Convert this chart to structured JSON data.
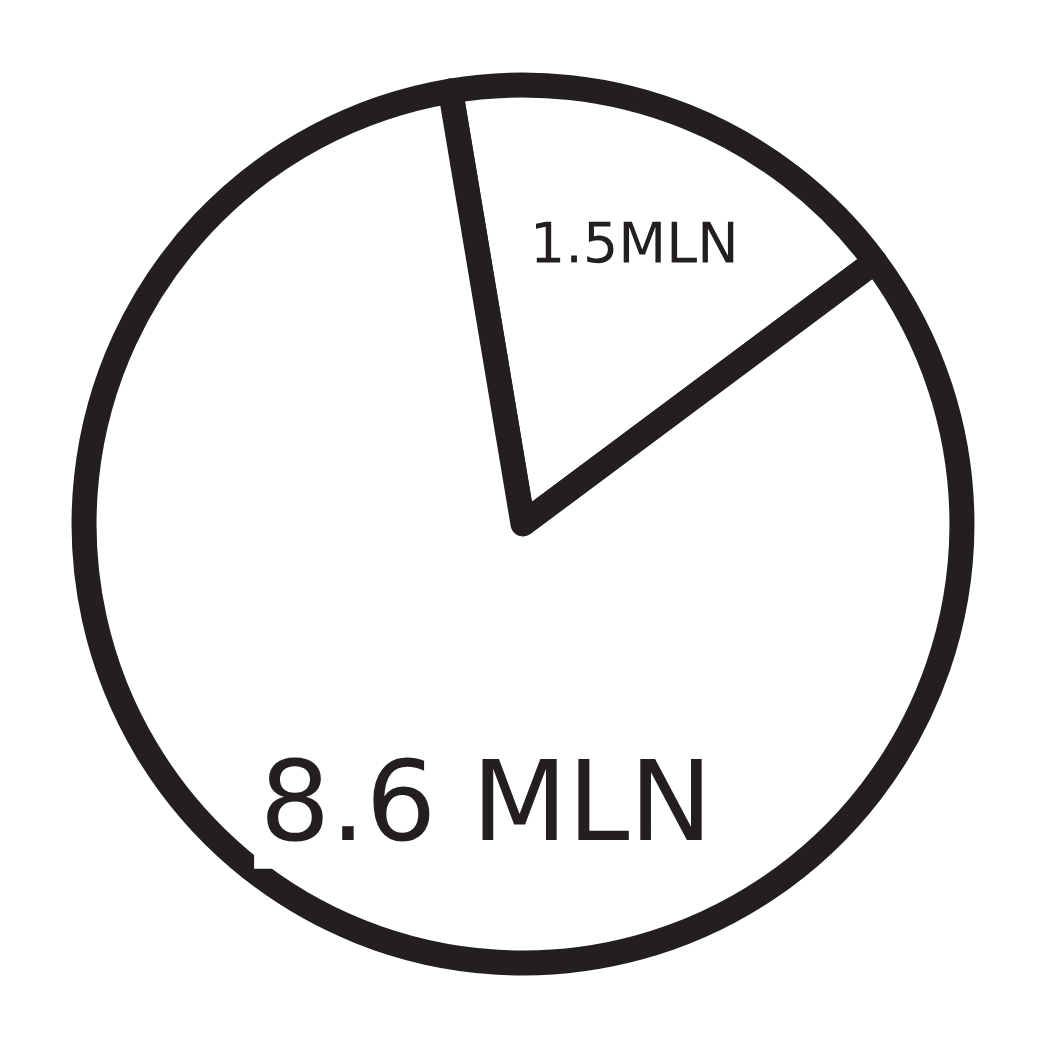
{
  "chart_data": {
    "type": "pie",
    "categories": [
      null,
      null
    ],
    "values": [
      1.5,
      7.1
    ],
    "colors": [
      "#ffffff",
      "#ffffff"
    ],
    "value_labels": [
      "1.5MLN",
      null
    ],
    "annotations": [
      "8.6 MLN"
    ],
    "legend": false
  }
}
